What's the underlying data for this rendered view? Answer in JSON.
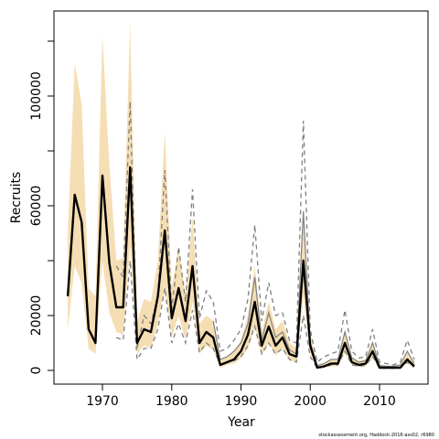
{
  "chart_data": {
    "type": "line",
    "xlabel": "Year",
    "ylabel": "Recruits",
    "xlim": [
      1963,
      2017
    ],
    "ylim": [
      -5000,
      131000
    ],
    "xticks": [
      1970,
      1980,
      1990,
      2000,
      2010
    ],
    "yticks": [
      0,
      20000,
      60000,
      100000
    ],
    "yminor_ticks": [
      40000,
      80000,
      120000
    ],
    "grid": false,
    "credit": "stockassessment.org, Haddock-2016-ass02, r6980",
    "colors": {
      "estimate": "#000000",
      "band": "#F5DEB3",
      "comparison": "#808080"
    },
    "x": [
      1965,
      1966,
      1967,
      1968,
      1969,
      1970,
      1971,
      1972,
      1973,
      1974,
      1975,
      1976,
      1977,
      1978,
      1979,
      1980,
      1981,
      1982,
      1983,
      1984,
      1985,
      1986,
      1987,
      1988,
      1989,
      1990,
      1991,
      1992,
      1993,
      1994,
      1995,
      1996,
      1997,
      1998,
      1999,
      2000,
      2001,
      2002,
      2003,
      2004,
      2005,
      2006,
      2007,
      2008,
      2009,
      2010,
      2011,
      2012,
      2013,
      2014,
      2015
    ],
    "series": [
      {
        "role": "estimate",
        "values": [
          27000,
          64000,
          54000,
          15000,
          10000,
          71000,
          39000,
          23000,
          23000,
          74000,
          10000,
          15000,
          14000,
          27000,
          51000,
          19000,
          30000,
          18000,
          38000,
          10000,
          14000,
          12000,
          2000,
          3000,
          4000,
          7000,
          13000,
          25000,
          9000,
          16000,
          9000,
          12000,
          6000,
          5000,
          40000,
          9000,
          1000,
          1500,
          2500,
          2500,
          10000,
          3000,
          2000,
          2500,
          7000,
          1000,
          1000,
          1000,
          1000,
          4000,
          1500
        ]
      },
      {
        "role": "band-upper",
        "values": [
          50000,
          112000,
          97000,
          30000,
          27000,
          122000,
          75000,
          40000,
          41000,
          127000,
          18000,
          26000,
          25000,
          40000,
          87000,
          30000,
          45000,
          27000,
          56000,
          17000,
          20000,
          18000,
          4000,
          5000,
          7000,
          11000,
          20000,
          38000,
          14000,
          25000,
          15000,
          18000,
          10000,
          8000,
          58000,
          14000,
          2000,
          2500,
          4000,
          4000,
          15000,
          5000,
          3500,
          4000,
          11000,
          2000,
          1700,
          1700,
          1800,
          7000,
          3000
        ]
      },
      {
        "role": "band-lower",
        "values": [
          15000,
          38000,
          32000,
          8000,
          6000,
          40000,
          21000,
          14000,
          13000,
          45000,
          6000,
          9000,
          8000,
          17000,
          30000,
          12000,
          20000,
          11000,
          25000,
          6000,
          9000,
          7500,
          1000,
          2000,
          2500,
          4500,
          8000,
          16000,
          5500,
          10000,
          5500,
          8000,
          3500,
          3000,
          27000,
          6000,
          600,
          900,
          1500,
          1500,
          6500,
          2000,
          1200,
          1500,
          4500,
          600,
          600,
          600,
          600,
          2500,
          800
        ]
      },
      {
        "role": "comparison-upper",
        "values": [
          null,
          null,
          null,
          null,
          null,
          null,
          null,
          38000,
          34000,
          98000,
          8000,
          20000,
          17000,
          27000,
          73000,
          22000,
          45000,
          25000,
          66000,
          19000,
          29000,
          25000,
          7000,
          8000,
          11000,
          15000,
          26000,
          53000,
          18000,
          32000,
          20000,
          21000,
          11000,
          10000,
          91000,
          15000,
          3000,
          5000,
          6000,
          7000,
          22000,
          7000,
          4500,
          5000,
          15000,
          3000,
          2500,
          2000,
          3000,
          11000,
          4000
        ]
      },
      {
        "role": "comparison-mid",
        "values": [
          null,
          null,
          null,
          null,
          null,
          null,
          null,
          null,
          null,
          null,
          null,
          null,
          null,
          null,
          null,
          null,
          null,
          null,
          null,
          null,
          null,
          18000,
          4000,
          5000,
          7000,
          10000,
          17000,
          34000,
          11000,
          21000,
          12000,
          14000,
          7500,
          6000,
          58000,
          10000,
          1800,
          2500,
          4000,
          4000,
          14000,
          4500,
          3000,
          3500,
          10000,
          1800,
          1500,
          1500,
          2000,
          7000,
          2500
        ]
      },
      {
        "role": "comparison-lower",
        "values": [
          null,
          null,
          null,
          null,
          null,
          null,
          null,
          12000,
          11000,
          40000,
          4000,
          8000,
          8000,
          15000,
          30000,
          10000,
          17000,
          10000,
          22000,
          6500,
          10000,
          8000,
          2000,
          3000,
          3500,
          5000,
          9000,
          16000,
          6000,
          10000,
          6000,
          8000,
          4000,
          3000,
          20000,
          5000,
          800,
          1200,
          2000,
          2000,
          7000,
          2000,
          1500,
          1800,
          5000,
          800,
          800,
          700,
          900,
          3000,
          1200
        ]
      }
    ]
  }
}
